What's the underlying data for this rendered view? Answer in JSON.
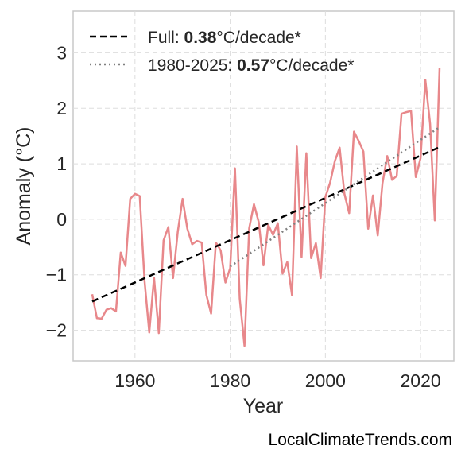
{
  "chart_data": {
    "type": "line",
    "xlabel": "Year",
    "ylabel": "Anomaly (°C)",
    "xlim": [
      1947,
      2027
    ],
    "ylim": [
      -2.55,
      3.75
    ],
    "xticks": [
      1960,
      1980,
      2000,
      2020
    ],
    "yticks": [
      -2,
      -1,
      0,
      1,
      2,
      3
    ],
    "ytick_labels": [
      "−2",
      "−1",
      "0",
      "1",
      "2",
      "3"
    ],
    "grid": true,
    "legend_position": "top-left",
    "series": [
      {
        "kind": "data",
        "color": "#e8888b",
        "x": [
          1951,
          1952,
          1953,
          1954,
          1955,
          1956,
          1957,
          1958,
          1959,
          1960,
          1961,
          1962,
          1963,
          1964,
          1965,
          1966,
          1967,
          1968,
          1969,
          1970,
          1971,
          1972,
          1973,
          1974,
          1975,
          1976,
          1977,
          1978,
          1979,
          1980,
          1981,
          1982,
          1983,
          1984,
          1985,
          1986,
          1987,
          1988,
          1989,
          1990,
          1991,
          1992,
          1993,
          1994,
          1995,
          1996,
          1997,
          1998,
          1999,
          2000,
          2001,
          2002,
          2003,
          2004,
          2005,
          2006,
          2007,
          2008,
          2009,
          2010,
          2011,
          2012,
          2013,
          2014,
          2015,
          2016,
          2017,
          2018,
          2019,
          2020,
          2021,
          2022,
          2023,
          2024
        ],
        "y": [
          -1.35,
          -1.78,
          -1.79,
          -1.63,
          -1.6,
          -1.66,
          -0.6,
          -0.84,
          0.37,
          0.46,
          0.42,
          -1.1,
          -2.04,
          -1.05,
          -2.05,
          -0.38,
          -0.14,
          -1.06,
          -0.22,
          0.37,
          -0.17,
          -0.45,
          -0.39,
          -0.42,
          -1.36,
          -1.7,
          -0.42,
          -0.56,
          -1.14,
          -0.88,
          0.92,
          -1.43,
          -2.28,
          -0.16,
          0.27,
          -0.05,
          -0.83,
          -0.1,
          -0.28,
          -0.07,
          -0.98,
          -0.77,
          -1.37,
          1.31,
          -0.68,
          1.19,
          -0.7,
          -0.43,
          -1.06,
          0.4,
          0.66,
          1.05,
          1.29,
          0.46,
          0.11,
          1.58,
          1.41,
          1.22,
          -0.17,
          0.43,
          -0.29,
          0.65,
          1.14,
          0.71,
          0.78,
          1.9,
          1.93,
          1.95,
          0.76,
          1.1,
          2.51,
          1.72,
          -0.02,
          2.73
        ]
      },
      {
        "kind": "trend",
        "name": "Full: 0.38°C/decade*",
        "label_prefix": "Full: ",
        "label_value": "0.38",
        "label_suffix": "°C/decade*",
        "color": "#000000",
        "dash": "dashed",
        "x": [
          1951,
          2024
        ],
        "y": [
          -1.48,
          1.3
        ]
      },
      {
        "kind": "trend",
        "name": "1980-2025: 0.57°C/decade*",
        "label_prefix": "1980-2025: ",
        "label_value": "0.57",
        "label_suffix": "°C/decade*",
        "color": "#808080",
        "dash": "dotted",
        "x": [
          1980,
          2024
        ],
        "y": [
          -0.85,
          1.66
        ]
      }
    ]
  },
  "watermark": "LocalClimateTrends.com"
}
